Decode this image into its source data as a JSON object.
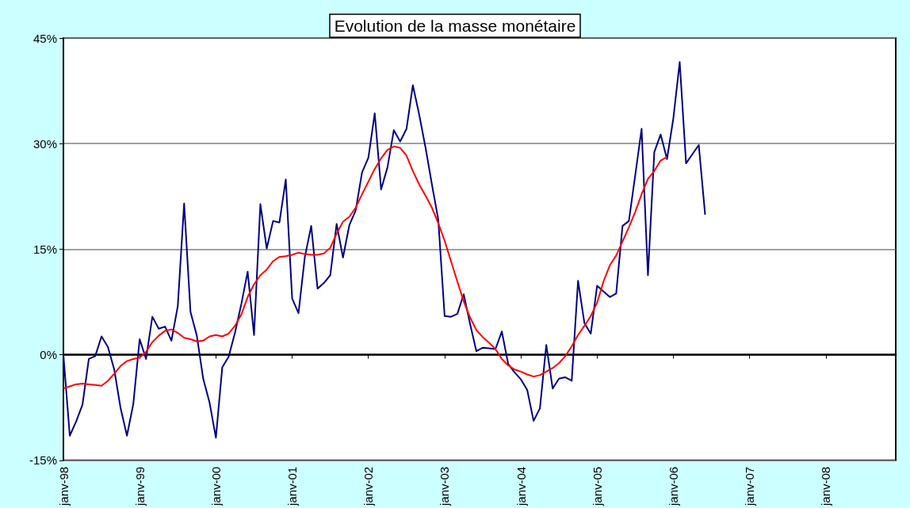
{
  "chart_data": {
    "type": "line",
    "title": "Evolution de la masse monétaire",
    "categories": [
      "janv-98",
      null,
      null,
      null,
      null,
      null,
      null,
      null,
      null,
      null,
      null,
      null,
      "janv-99",
      null,
      null,
      null,
      null,
      null,
      null,
      null,
      null,
      null,
      null,
      null,
      "janv-00",
      null,
      null,
      null,
      null,
      null,
      null,
      null,
      null,
      null,
      null,
      null,
      "janv-01",
      null,
      null,
      null,
      null,
      null,
      null,
      null,
      null,
      null,
      null,
      null,
      "janv-02",
      null,
      null,
      null,
      null,
      null,
      null,
      null,
      null,
      null,
      null,
      null,
      "janv-03",
      null,
      null,
      null,
      null,
      null,
      null,
      null,
      null,
      null,
      null,
      null,
      "janv-04",
      null,
      null,
      null,
      null,
      null,
      null,
      null,
      null,
      null,
      null,
      null,
      "janv-05",
      null,
      null,
      null,
      null,
      null,
      null,
      null,
      null,
      null,
      null,
      null,
      "janv-06",
      null,
      null,
      null,
      null,
      null,
      null,
      null,
      null,
      null,
      null,
      null,
      "janv-07",
      null,
      null,
      null,
      null,
      null,
      null,
      null,
      null,
      null,
      null,
      null,
      "janv-08",
      null,
      null,
      null,
      null,
      null,
      null,
      null,
      null,
      null,
      null,
      null
    ],
    "series": [
      {
        "color": "#000080",
        "values": [
          0,
          -11.5,
          -9.5,
          -7.1,
          -0.6,
          -0.2,
          2.6,
          1.1,
          -2.1,
          -7.6,
          -11.5,
          -7.0,
          2.2,
          -0.6,
          5.4,
          3.7,
          4.0,
          2.0,
          6.9,
          21.5,
          6.1,
          2.7,
          -3.4,
          -6.8,
          -11.8,
          -1.8,
          -0.3,
          3.1,
          7.2,
          11.8,
          2.8,
          21.4,
          15.1,
          19.0,
          18.8,
          24.9,
          8.0,
          5.9,
          13.9,
          18.3,
          9.4,
          10.2,
          11.3,
          18.6,
          13.8,
          18.4,
          20.5,
          25.9,
          28.0,
          34.3,
          23.5,
          26.6,
          31.9,
          30.3,
          32.1,
          38.3,
          34.1,
          29.4,
          24.2,
          19.2,
          5.5,
          5.4,
          5.8,
          8.6,
          4.4,
          0.5,
          1.0,
          0.9,
          0.8,
          3.3,
          -1.3,
          -2.5,
          -3.5,
          -5.0,
          -9.4,
          -7.6,
          1.4,
          -4.8,
          -3.4,
          -3.2,
          -3.7,
          10.5,
          4.5,
          3.0,
          9.8,
          9.0,
          8.2,
          8.7,
          18.3,
          19.0,
          25.5,
          32.1,
          11.3,
          28.8,
          31.3,
          27.8,
          33.6,
          41.6,
          27.2,
          28.5,
          29.8,
          19.9,
          null,
          null,
          null,
          null,
          null,
          null,
          null,
          null,
          null,
          null,
          null,
          null,
          null,
          null,
          null,
          null,
          null,
          null,
          null,
          null,
          null,
          null,
          null,
          null,
          null,
          null,
          null,
          null,
          null,
          null
        ]
      },
      {
        "color": "#ff0000",
        "values": [
          -4.8,
          -4.5,
          -4.2,
          -4.1,
          -4.2,
          -4.3,
          -4.4,
          -3.7,
          -2.7,
          -1.6,
          -0.9,
          -0.6,
          -0.4,
          0.4,
          1.8,
          2.7,
          3.4,
          3.6,
          3.1,
          2.4,
          2.2,
          1.9,
          2.0,
          2.6,
          2.8,
          2.6,
          3.0,
          4.1,
          5.7,
          8.2,
          10.0,
          11.3,
          12.1,
          13.3,
          13.9,
          14.0,
          14.2,
          14.5,
          14.3,
          14.2,
          14.2,
          14.4,
          15.2,
          17.2,
          18.9,
          19.6,
          20.9,
          22.8,
          24.6,
          26.4,
          27.9,
          29.1,
          29.6,
          29.4,
          28.3,
          26.1,
          24.2,
          22.6,
          20.9,
          18.7,
          16.2,
          13.3,
          10.4,
          7.6,
          5.3,
          3.5,
          2.5,
          1.7,
          0.8,
          -0.6,
          -1.5,
          -2.1,
          -2.4,
          -2.8,
          -3.1,
          -2.9,
          -2.4,
          -1.9,
          -1.2,
          -0.2,
          1.2,
          2.8,
          4.1,
          5.5,
          7.4,
          10.4,
          12.7,
          14.1,
          16.1,
          18.1,
          20.3,
          22.8,
          25.0,
          26.1,
          27.6,
          28.1,
          null,
          null,
          null,
          null,
          null,
          null,
          null,
          null,
          null,
          null,
          null,
          null,
          null,
          null,
          null,
          null,
          null,
          null,
          null,
          null,
          null,
          null,
          null,
          null,
          null,
          null,
          null,
          null,
          null,
          null,
          null,
          null,
          null,
          null,
          null,
          null
        ]
      }
    ],
    "ylim": [
      -15,
      45
    ],
    "yticks": [
      {
        "value": -15,
        "label": "-15%"
      },
      {
        "value": 0,
        "label": "0%"
      },
      {
        "value": 15,
        "label": "15%"
      },
      {
        "value": 30,
        "label": "30%"
      },
      {
        "value": 45,
        "label": "45%"
      }
    ],
    "grid": "y",
    "marker": "none"
  }
}
